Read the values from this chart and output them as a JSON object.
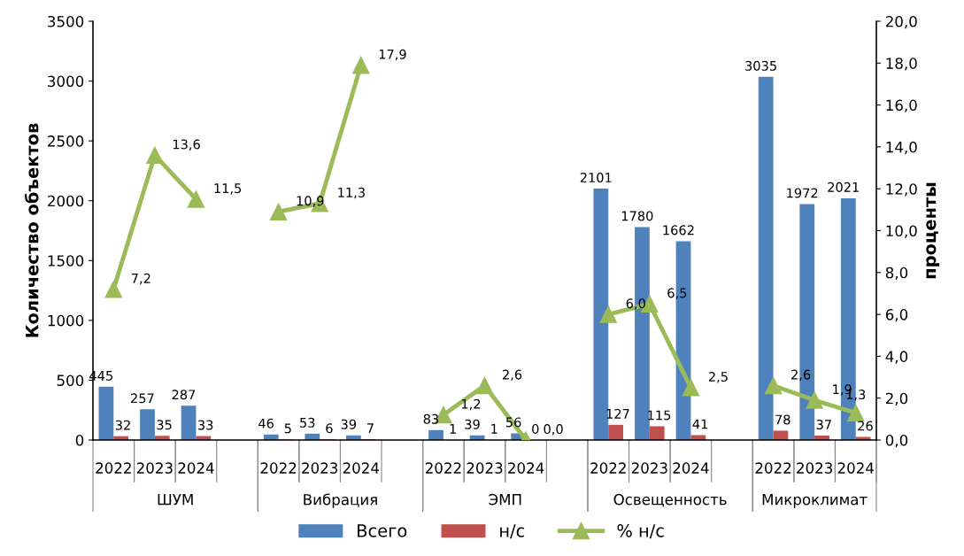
{
  "chart_data": {
    "type": "bar",
    "ylabel": "Количество объектов",
    "y2label": "проценты",
    "categories": [
      "2022",
      "2023",
      "2024",
      null,
      "2022",
      "2023",
      "2024",
      null,
      "2022",
      "2023",
      "2024",
      null,
      "2022",
      "2023",
      "2024",
      null,
      "2022",
      "2023",
      "2024"
    ],
    "annotations": [
      "ШУМ",
      "Вибрация",
      "ЭМП",
      "Освещенность",
      "Микроклимат"
    ],
    "series": [
      {
        "name": "Всего",
        "color": "#4f81bd",
        "values": [
          445,
          257,
          287,
          null,
          46,
          53,
          39,
          null,
          83,
          39,
          56,
          null,
          2101,
          1780,
          1662,
          null,
          3035,
          1972,
          2021
        ],
        "value_labels": [
          "445",
          "257",
          "287",
          null,
          "46",
          "53",
          "39",
          null,
          "83",
          "39",
          "56",
          null,
          "2101",
          "1780",
          "1662",
          null,
          "3035",
          "1972",
          "2021"
        ]
      },
      {
        "name": "н/с",
        "color": "#c0504d",
        "values": [
          32,
          35,
          33,
          null,
          5,
          6,
          7,
          null,
          1,
          1,
          0,
          null,
          127,
          115,
          41,
          null,
          78,
          37,
          26
        ],
        "value_labels": [
          "32",
          "35",
          "33",
          null,
          "5",
          "6",
          "7",
          null,
          "1",
          "1",
          "0",
          null,
          "127",
          "115",
          "41",
          null,
          "78",
          "37",
          "26"
        ]
      },
      {
        "name": "% н/с",
        "type": "line",
        "axis": "y2",
        "color": "#9bbb59",
        "values": [
          7.2,
          13.6,
          11.5,
          null,
          10.9,
          11.3,
          17.9,
          null,
          1.2,
          2.6,
          0.0,
          null,
          6.0,
          6.5,
          2.5,
          null,
          2.6,
          1.9,
          1.3
        ],
        "value_labels": [
          "7,2",
          "13,6",
          "11,5",
          null,
          "10,9",
          "11,3",
          "17,9",
          null,
          "1,2",
          "2,6",
          "0,0",
          null,
          "6,0",
          "6,5",
          "2,5",
          null,
          "2,6",
          "1,9",
          "1,3"
        ]
      }
    ],
    "ylim": [
      0,
      3500
    ],
    "yticks": [
      0,
      500,
      1000,
      1500,
      2000,
      2500,
      3000,
      3500
    ],
    "y2lim": [
      0,
      20
    ],
    "y2ticks": [
      {
        "value": 0,
        "label": "0,0"
      },
      {
        "value": 2,
        "label": "2,0"
      },
      {
        "value": 4,
        "label": "4,0"
      },
      {
        "value": 6,
        "label": "6,0"
      },
      {
        "value": 8,
        "label": "8,0"
      },
      {
        "value": 10,
        "label": "10,0"
      },
      {
        "value": 12,
        "label": "12,0"
      },
      {
        "value": 14,
        "label": "14,0"
      },
      {
        "value": 16,
        "label": "16,0"
      },
      {
        "value": 18,
        "label": "18,0"
      },
      {
        "value": 20,
        "label": "20,0"
      }
    ],
    "marker": "triangle",
    "legend": "bottom",
    "grid": false
  }
}
